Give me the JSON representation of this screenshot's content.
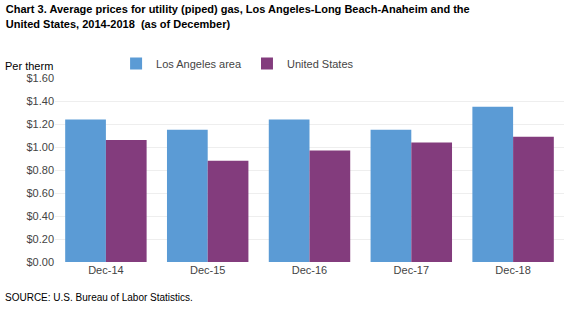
{
  "chart_data": {
    "type": "bar",
    "title": "Chart 3. Average prices for utility (piped) gas, Los Angeles-Long Beach-Anaheim and the\nUnited States, 2014-2018  (as of December)",
    "ylabel": "Per therm",
    "categories": [
      "Dec-14",
      "Dec-15",
      "Dec-16",
      "Dec-17",
      "Dec-18"
    ],
    "series": [
      {
        "name": "Los Angeles area",
        "color": "#5B9BD5",
        "values": [
          1.24,
          1.15,
          1.24,
          1.15,
          1.35
        ]
      },
      {
        "name": "United States",
        "color": "#833C7D",
        "values": [
          1.06,
          0.88,
          0.97,
          1.04,
          1.09
        ]
      }
    ],
    "ylim": [
      0,
      1.6
    ],
    "yticks": [
      {
        "value": 0.0,
        "label": "$0.00"
      },
      {
        "value": 0.2,
        "label": "$0.20"
      },
      {
        "value": 0.4,
        "label": "$0.40"
      },
      {
        "value": 0.6,
        "label": "$0.60"
      },
      {
        "value": 0.8,
        "label": "$0.80"
      },
      {
        "value": 1.0,
        "label": "$1.00"
      },
      {
        "value": 1.2,
        "label": "$1.20"
      },
      {
        "value": 1.4,
        "label": "$1.40"
      },
      {
        "value": 1.6,
        "label": "$1.60"
      }
    ],
    "annotations": [
      "SOURCE: U.S. Bureau of Labor Statistics."
    ],
    "grid": true,
    "legend": "upper left"
  }
}
